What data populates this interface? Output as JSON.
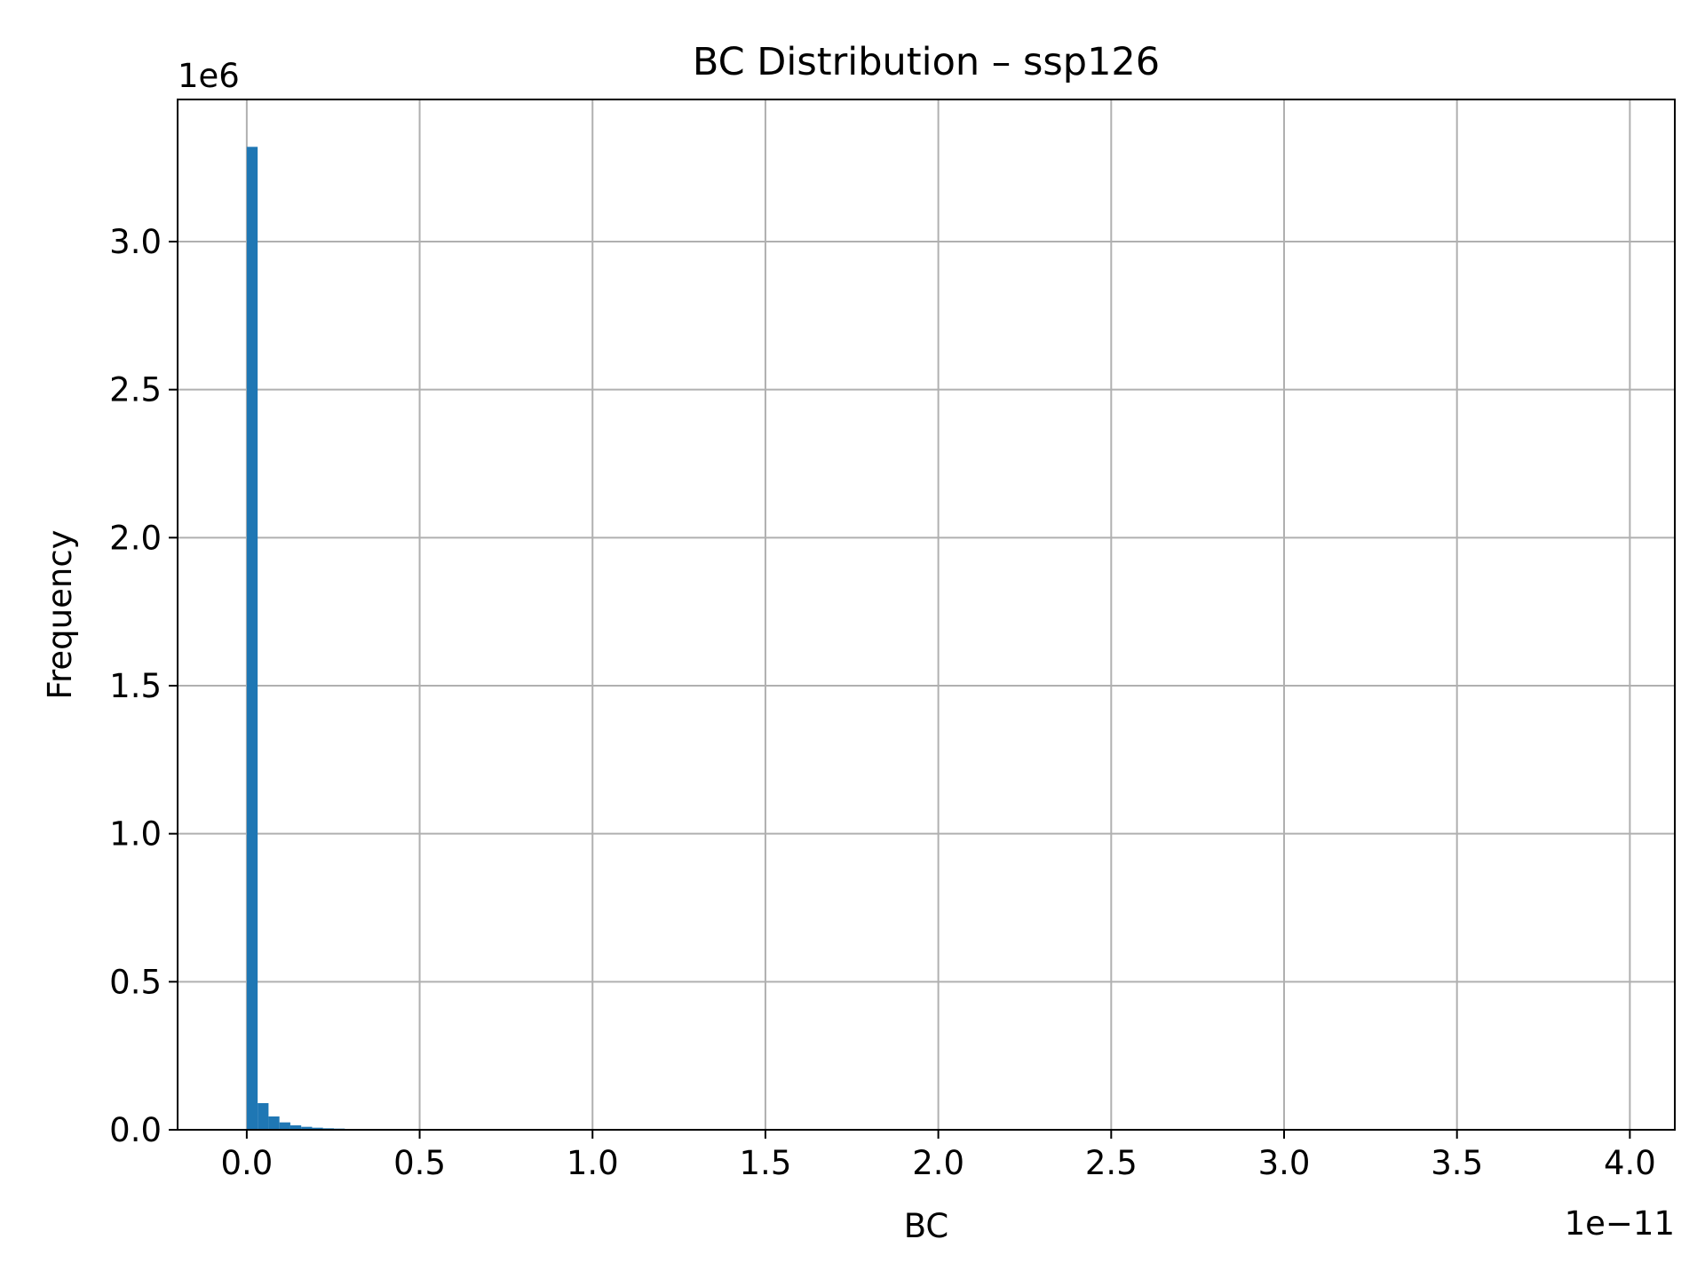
{
  "chart_data": {
    "type": "bar",
    "title": "BC Distribution – ssp126",
    "xlabel": "BC",
    "ylabel": "Frequency",
    "x_offset_label": "1e−11",
    "y_offset_label": "1e6",
    "x_scale_exponent": -11,
    "y_scale_exponent": 6,
    "xlim": [
      -0.2,
      4.13
    ],
    "ylim": [
      0,
      3.48
    ],
    "x_ticks": [
      0.0,
      0.5,
      1.0,
      1.5,
      2.0,
      2.5,
      3.0,
      3.5,
      4.0
    ],
    "x_tick_labels": [
      "0.0",
      "0.5",
      "1.0",
      "1.5",
      "2.0",
      "2.5",
      "3.0",
      "3.5",
      "4.0"
    ],
    "y_ticks": [
      0.0,
      0.5,
      1.0,
      1.5,
      2.0,
      2.5,
      3.0
    ],
    "y_tick_labels": [
      "0.0",
      "0.5",
      "1.0",
      "1.5",
      "2.0",
      "2.5",
      "3.0"
    ],
    "grid": true,
    "bar_color": "#1f77b4",
    "bins": {
      "start": 0.0,
      "width": 0.0315,
      "counts": [
        3.32,
        0.09,
        0.045,
        0.025,
        0.015,
        0.01,
        0.007,
        0.005,
        0.004,
        0.003
      ]
    }
  }
}
